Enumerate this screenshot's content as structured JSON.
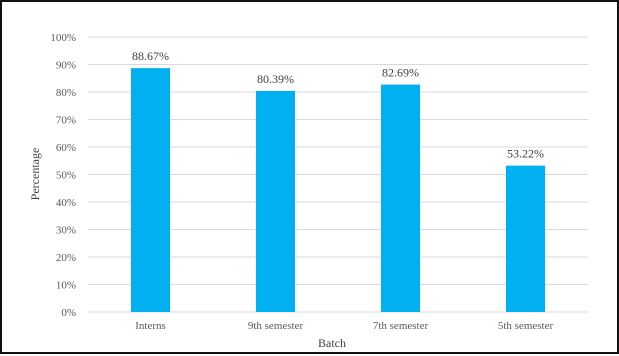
{
  "chart_data": {
    "type": "bar",
    "title": "",
    "xlabel": "Batch",
    "ylabel": "Percentage",
    "ylim": [
      0,
      100
    ],
    "y_ticks": [
      "0%",
      "10%",
      "20%",
      "30%",
      "40%",
      "50%",
      "60%",
      "70%",
      "80%",
      "90%",
      "100%"
    ],
    "categories": [
      "Interns",
      "9th semester",
      "7th semester",
      "5th semester"
    ],
    "values": [
      88.67,
      80.39,
      82.69,
      53.22
    ],
    "data_labels": [
      "88.67%",
      "80.39%",
      "82.69%",
      "53.22%"
    ],
    "grid": true,
    "legend": "none",
    "bar_color": "#00B0F0",
    "grid_color": "#D9D9D9"
  }
}
